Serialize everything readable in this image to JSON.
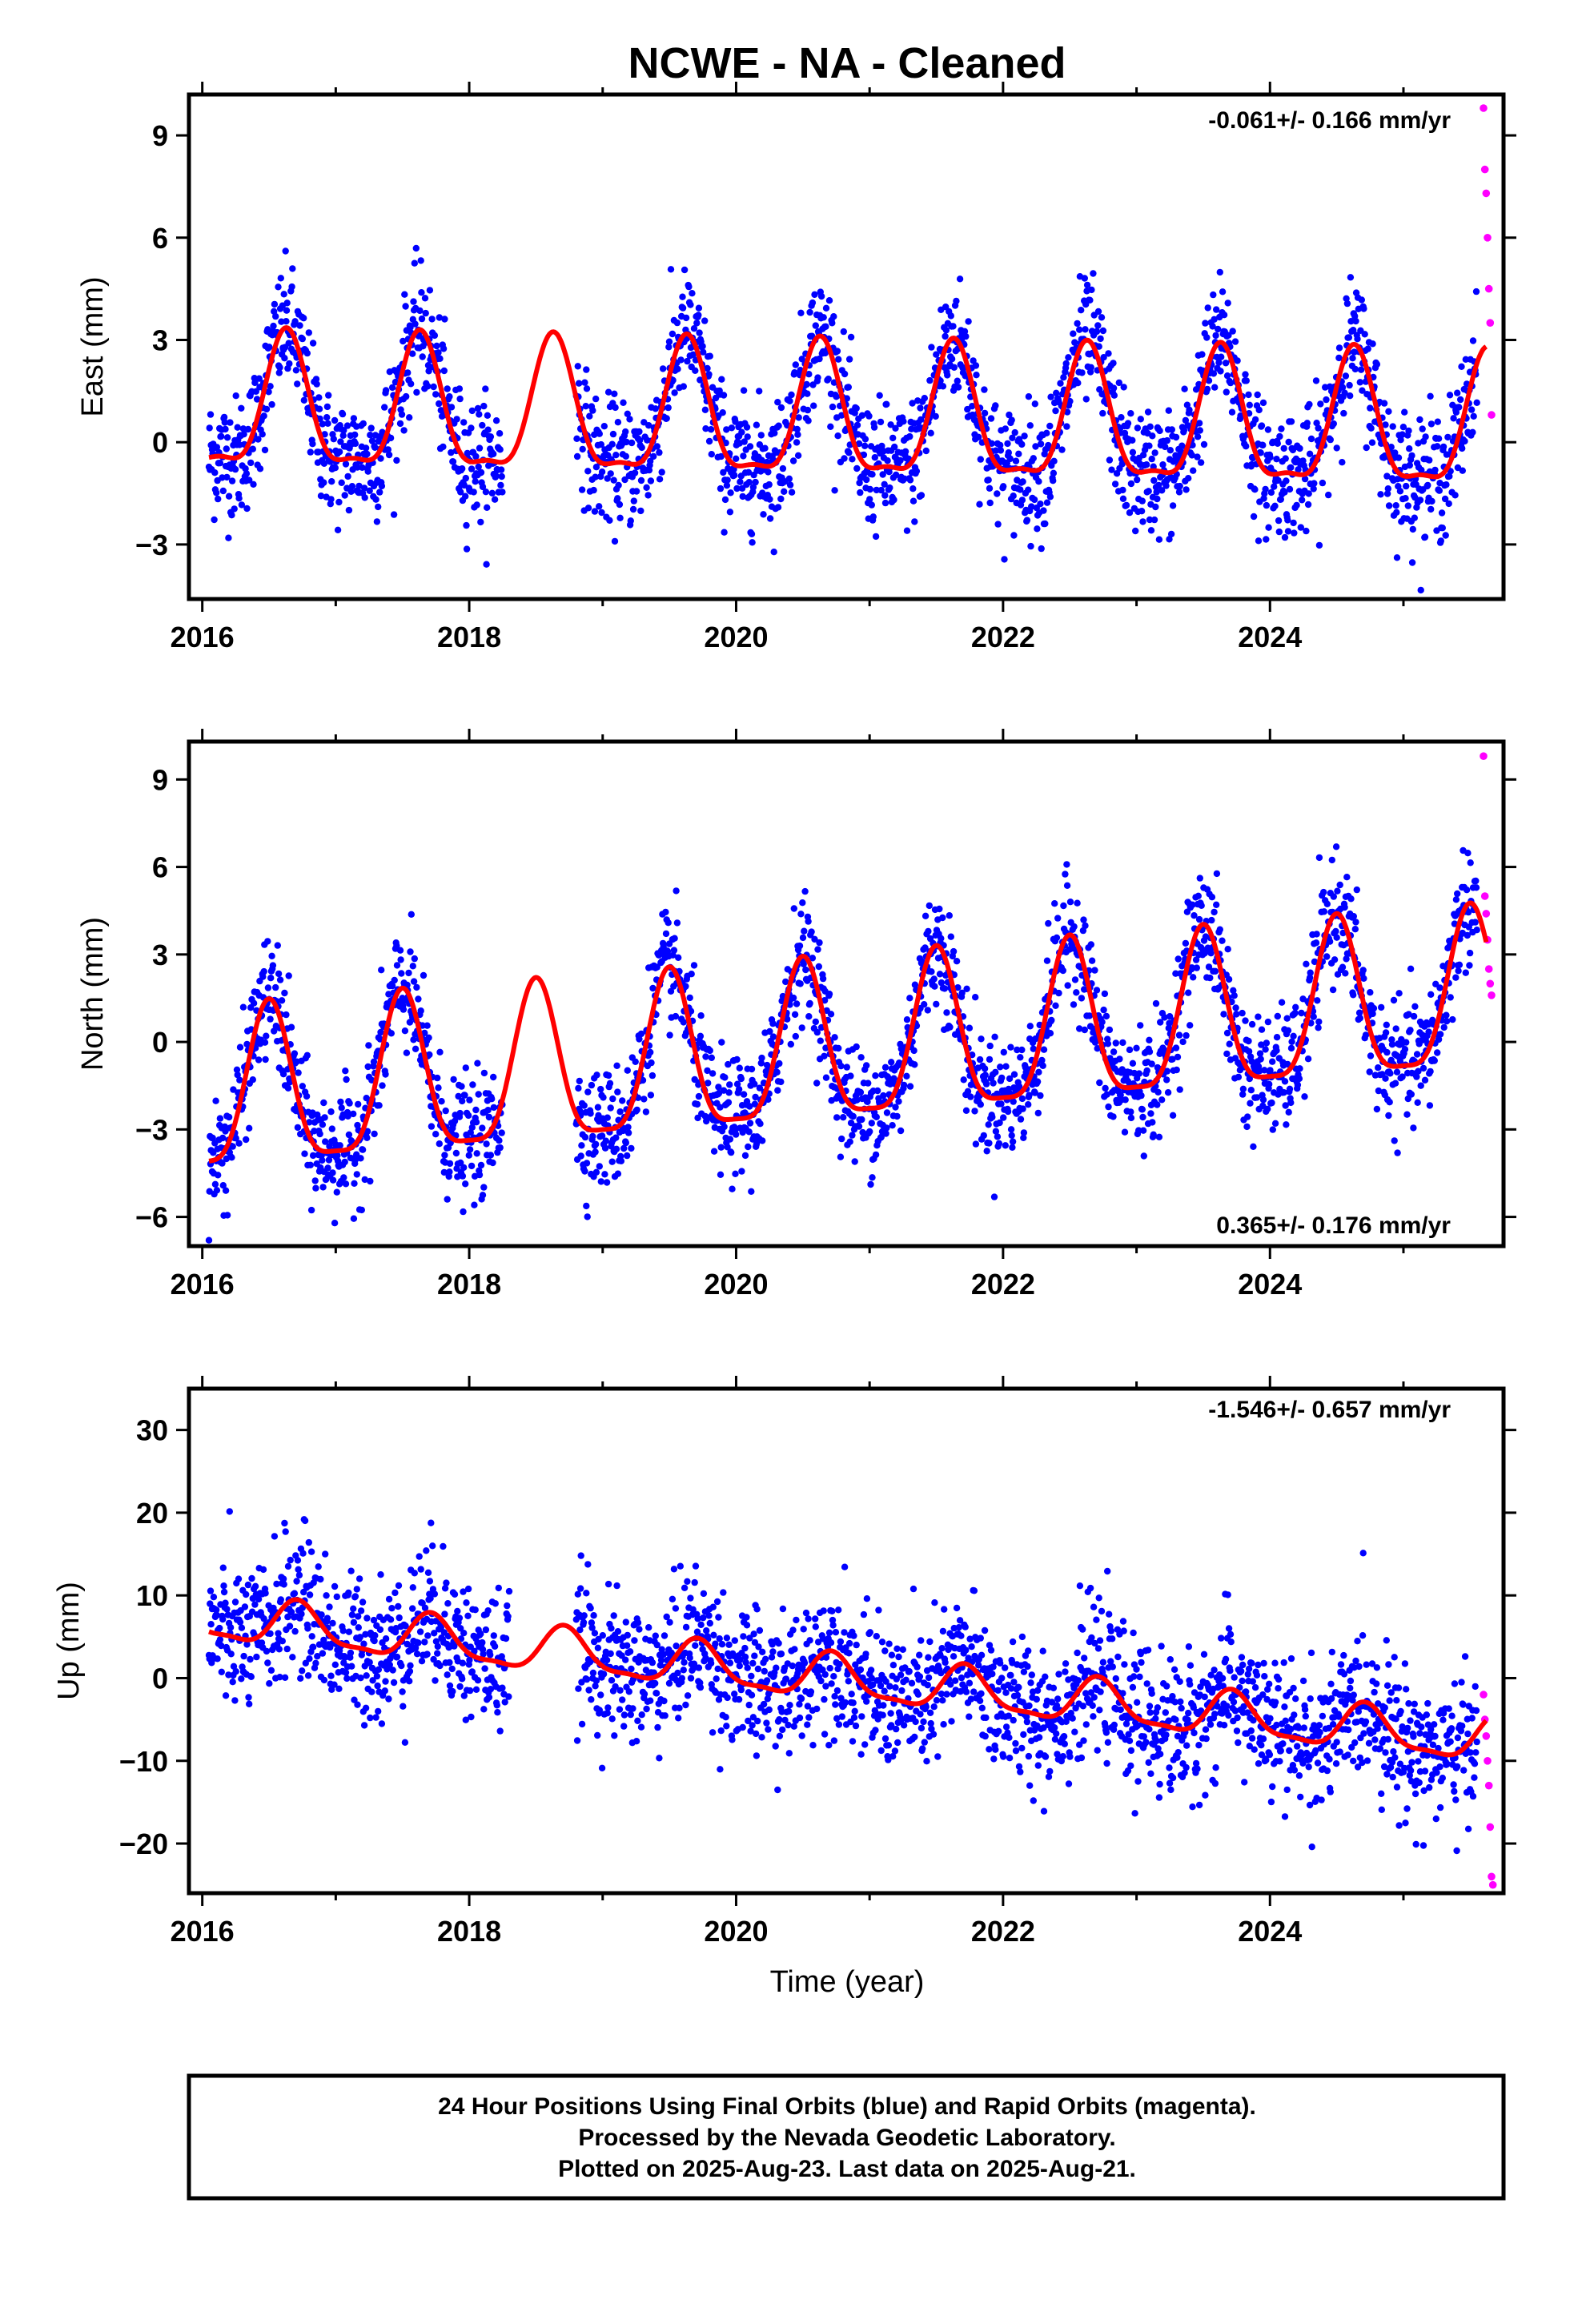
{
  "title": "NCWE  - NA - Cleaned",
  "footer": {
    "lines": [
      "24 Hour Positions Using Final Orbits (blue) and Rapid Orbits (magenta).",
      "Processed by the Nevada Geodetic Laboratory.",
      "Plotted on 2025-Aug-23. Last data on 2025-Aug-21."
    ]
  },
  "colors": {
    "final_orbits": "#0000ff",
    "rapid_orbits": "#ff00ff",
    "model_fit": "#ff0000",
    "frame": "#000000"
  },
  "chart_data": [
    {
      "type": "scatter",
      "panel": "east",
      "title": "",
      "xlabel": "",
      "ylabel": "East (mm)",
      "xlim": [
        2015.9,
        2025.75
      ],
      "ylim": [
        -4.6,
        10.2
      ],
      "x_ticks": [
        2016,
        2018,
        2020,
        2022,
        2024
      ],
      "x_tick_labels": [
        "2016",
        "2018",
        "2020",
        "2022",
        "2024"
      ],
      "y_ticks": [
        -3,
        0,
        3,
        6,
        9
      ],
      "y_tick_labels": [
        "−3",
        "0",
        "3",
        "6",
        "9"
      ],
      "rate_text": "-0.061+/- 0.166 mm/yr",
      "rate_position": "top-right",
      "fit": {
        "mean": 0.9,
        "trend_per_year": -0.061,
        "annual_amp": 1.9,
        "annual_peak": 0.63,
        "semiannual_amp": 0.6,
        "semiannual_peak": 0.13,
        "noise_sd": 0.9,
        "data_gap": [
          2018.25,
          2018.8
        ]
      },
      "series": [
        {
          "name": "",
          "color": "#0000ff",
          "x_range": [
            2016.05,
            2025.55
          ],
          "approx_points": 2400
        },
        {
          "name": "",
          "color": "#ff00ff",
          "x": [
            2025.6,
            2025.61,
            2025.62,
            2025.63,
            2025.64,
            2025.65,
            2025.66
          ],
          "values": [
            9.8,
            8.0,
            7.3,
            6.0,
            4.5,
            3.5,
            0.8
          ]
        }
      ]
    },
    {
      "type": "scatter",
      "panel": "north",
      "title": "",
      "xlabel": "",
      "ylabel": "North (mm)",
      "xlim": [
        2015.9,
        2025.75
      ],
      "ylim": [
        -7.0,
        10.3
      ],
      "x_ticks": [
        2016,
        2018,
        2020,
        2022,
        2024
      ],
      "x_tick_labels": [
        "2016",
        "2018",
        "2020",
        "2022",
        "2024"
      ],
      "y_ticks": [
        -6,
        -3,
        0,
        3,
        6,
        9
      ],
      "y_tick_labels": [
        "−6",
        "−3",
        "0",
        "3",
        "6",
        "9"
      ],
      "rate_text": "0.365+/- 0.176 mm/yr",
      "rate_position": "bottom-right",
      "fit": {
        "mean": -2.1,
        "trend_per_year": 0.365,
        "annual_amp": 2.7,
        "annual_peak": 0.5,
        "semiannual_amp": 0.7,
        "semiannual_peak": 0.0,
        "noise_sd": 1.0,
        "data_gap": [
          2018.25,
          2018.8
        ]
      },
      "series": [
        {
          "name": "",
          "color": "#0000ff",
          "x_range": [
            2016.05,
            2025.55
          ],
          "approx_points": 2400
        },
        {
          "name": "",
          "color": "#ff00ff",
          "x": [
            2025.6,
            2025.61,
            2025.62,
            2025.63,
            2025.64,
            2025.65,
            2025.66
          ],
          "values": [
            9.8,
            5.0,
            4.4,
            3.5,
            2.5,
            2.0,
            1.6
          ]
        }
      ]
    },
    {
      "type": "scatter",
      "panel": "up",
      "title": "",
      "xlabel": "Time (year)",
      "ylabel": "Up (mm)",
      "xlim": [
        2015.9,
        2025.75
      ],
      "ylim": [
        -26,
        35
      ],
      "x_ticks": [
        2016,
        2018,
        2020,
        2022,
        2024
      ],
      "x_tick_labels": [
        "2016",
        "2018",
        "2020",
        "2022",
        "2024"
      ],
      "y_ticks": [
        -20,
        -10,
        0,
        10,
        20,
        30
      ],
      "y_tick_labels": [
        "−20",
        "−10",
        "0",
        "10",
        "20",
        "30"
      ],
      "rate_text": "-1.546+/- 0.657 mm/yr",
      "rate_position": "top-right",
      "fit": {
        "mean": 7.2,
        "trend_per_year": -1.546,
        "annual_amp": 2.6,
        "annual_peak": 0.72,
        "semiannual_amp": 0.8,
        "semiannual_peak": 0.2,
        "noise_sd": 4.2,
        "data_gap": [
          2018.3,
          2018.8
        ]
      },
      "series": [
        {
          "name": "",
          "color": "#0000ff",
          "x_range": [
            2016.05,
            2025.55
          ],
          "approx_points": 2400
        },
        {
          "name": "",
          "color": "#ff00ff",
          "x": [
            2025.6,
            2025.61,
            2025.62,
            2025.63,
            2025.64,
            2025.65,
            2025.66,
            2025.67
          ],
          "values": [
            -2,
            -5,
            -7,
            -10,
            -13,
            -18,
            -24,
            -25
          ]
        }
      ]
    }
  ]
}
